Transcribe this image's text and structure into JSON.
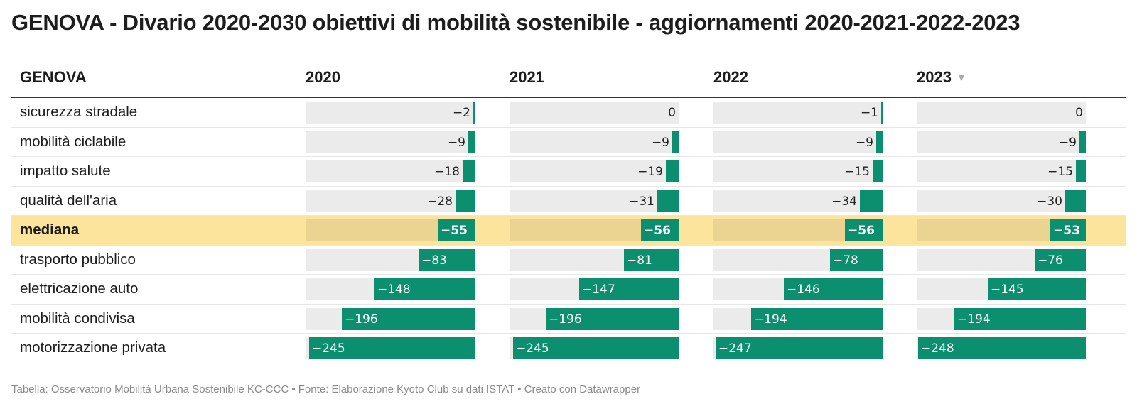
{
  "title": "GENOVA - Divario 2020-2030 obiettivi di mobilità sostenibile - aggiornamenti 2020-2021-2022-2023",
  "footer": "Tabella: Osservatorio Mobilità Urbana Sostenibile KC-CCC • Fonte: Elaborazione Kyoto Club su dati ISTAT • Creato con Datawrapper",
  "colors": {
    "bar": "#0b8f6f",
    "bar_track": "#ebebeb",
    "highlight_row": "#fde49c",
    "highlight_track": "#ebd391"
  },
  "sort_icon": "triangle-down-icon",
  "chart_data": {
    "type": "table",
    "row_header": "GENOVA",
    "columns": [
      "2020",
      "2021",
      "2022",
      "2023"
    ],
    "sorted_column": "2023",
    "sort_order": "descending",
    "value_range": [
      -250,
      0
    ],
    "rows": [
      {
        "label": "sicurezza stradale",
        "values": [
          -2,
          0,
          -1,
          0
        ]
      },
      {
        "label": "mobilità ciclabile",
        "values": [
          -9,
          -9,
          -9,
          -9
        ]
      },
      {
        "label": "impatto salute",
        "values": [
          -18,
          -19,
          -15,
          -15
        ]
      },
      {
        "label": "qualità dell'aria",
        "values": [
          -28,
          -31,
          -34,
          -30
        ]
      },
      {
        "label": "mediana",
        "values": [
          -55,
          -56,
          -56,
          -53
        ],
        "highlight": true
      },
      {
        "label": "trasporto pubblico",
        "values": [
          -83,
          -81,
          -78,
          -76
        ]
      },
      {
        "label": "elettricazione auto",
        "values": [
          -148,
          -147,
          -146,
          -145
        ]
      },
      {
        "label": "mobilità condivisa",
        "values": [
          -196,
          -196,
          -194,
          -194
        ]
      },
      {
        "label": "motorizzazione privata",
        "values": [
          -245,
          -245,
          -247,
          -248
        ]
      }
    ]
  }
}
